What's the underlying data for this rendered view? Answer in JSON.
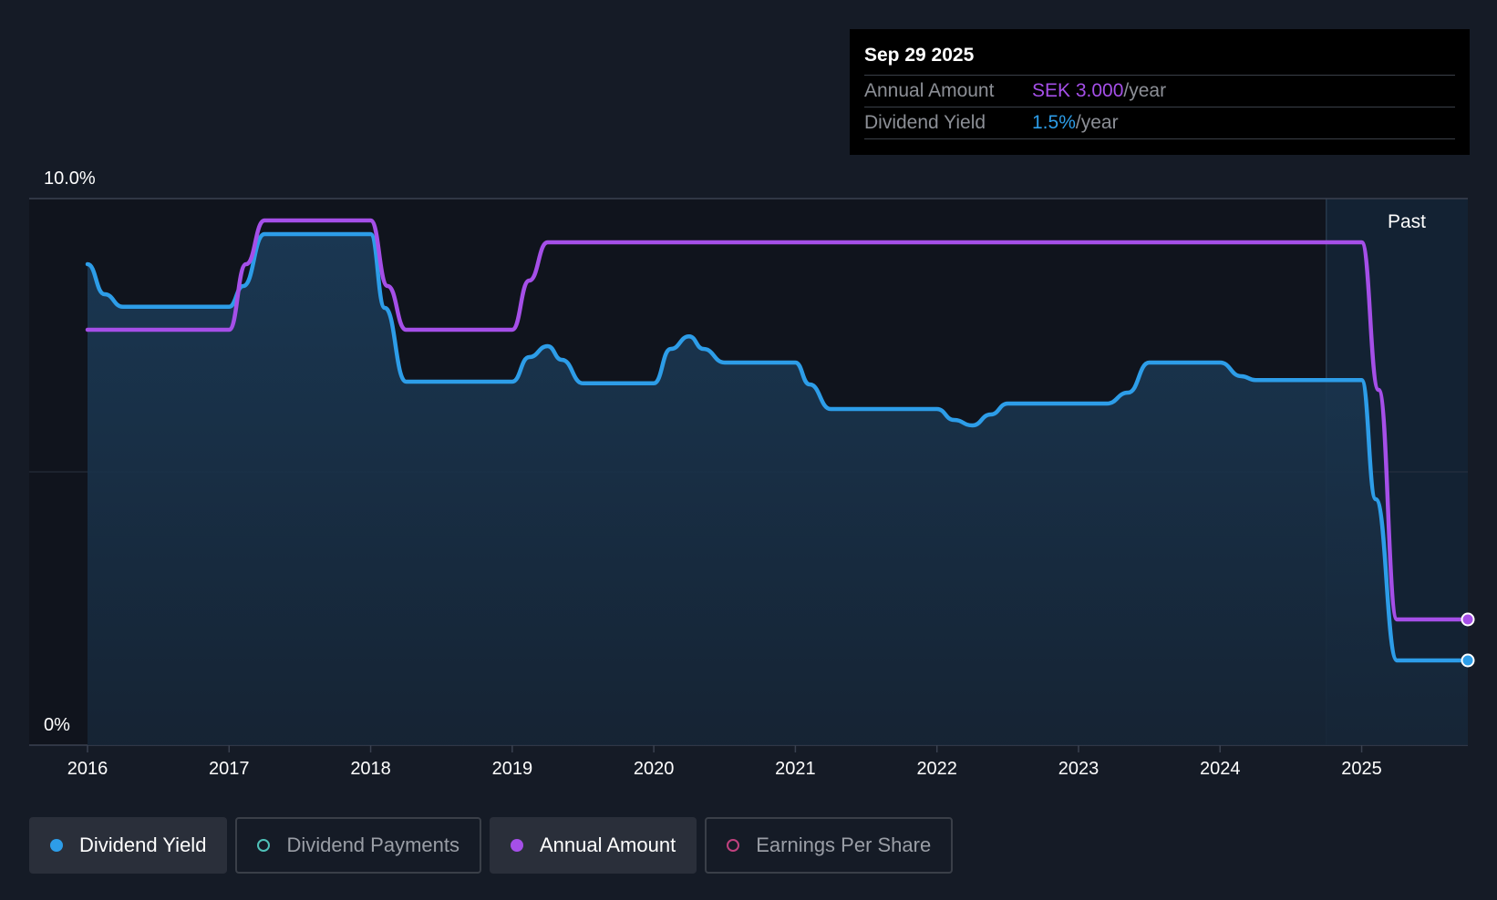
{
  "tooltip": {
    "date": "Sep 29 2025",
    "rows": [
      {
        "label": "Annual Amount",
        "value": "SEK 3.000",
        "unit": "/year",
        "color": "#a54fe8"
      },
      {
        "label": "Dividend Yield",
        "value": "1.5%",
        "unit": "/year",
        "color": "#2d9de8"
      }
    ]
  },
  "legend": [
    {
      "label": "Dividend Yield",
      "active": true,
      "color": "#2d9de8",
      "filled": true
    },
    {
      "label": "Dividend Payments",
      "active": false,
      "color": "#4fc1b8",
      "filled": false
    },
    {
      "label": "Annual Amount",
      "active": true,
      "color": "#a54fe8",
      "filled": true
    },
    {
      "label": "Earnings Per Share",
      "active": false,
      "color": "#c0417e",
      "filled": false
    }
  ],
  "chart_data": {
    "type": "line",
    "title": "",
    "xlabel": "",
    "ylabel": "",
    "ylim": [
      0,
      10
    ],
    "y_tick_labels": [
      "0%",
      "10.0%"
    ],
    "xlim": [
      2016,
      2025.75
    ],
    "x_tick_labels": [
      "2016",
      "2017",
      "2018",
      "2019",
      "2020",
      "2021",
      "2022",
      "2023",
      "2024",
      "2025"
    ],
    "x_ticks": [
      2016,
      2017,
      2018,
      2019,
      2020,
      2021,
      2022,
      2023,
      2024,
      2025
    ],
    "past_region": {
      "label": "Past",
      "start": 2024.75,
      "end": 2025.75
    },
    "series": [
      {
        "name": "Dividend Yield",
        "color": "#2d9de8",
        "area": true,
        "end_marker": true,
        "points": [
          [
            2016.0,
            8.8
          ],
          [
            2016.12,
            8.25
          ],
          [
            2016.25,
            8.02
          ],
          [
            2017.0,
            8.02
          ],
          [
            2017.1,
            8.4
          ],
          [
            2017.25,
            9.35
          ],
          [
            2018.0,
            9.35
          ],
          [
            2018.1,
            8.0
          ],
          [
            2018.25,
            6.65
          ],
          [
            2019.0,
            6.65
          ],
          [
            2019.12,
            7.1
          ],
          [
            2019.25,
            7.3
          ],
          [
            2019.35,
            7.05
          ],
          [
            2019.5,
            6.62
          ],
          [
            2020.0,
            6.62
          ],
          [
            2020.12,
            7.25
          ],
          [
            2020.25,
            7.48
          ],
          [
            2020.35,
            7.25
          ],
          [
            2020.5,
            7.0
          ],
          [
            2021.0,
            7.0
          ],
          [
            2021.1,
            6.6
          ],
          [
            2021.25,
            6.15
          ],
          [
            2022.0,
            6.15
          ],
          [
            2022.12,
            5.95
          ],
          [
            2022.25,
            5.85
          ],
          [
            2022.38,
            6.05
          ],
          [
            2022.5,
            6.25
          ],
          [
            2023.2,
            6.25
          ],
          [
            2023.35,
            6.45
          ],
          [
            2023.5,
            7.0
          ],
          [
            2024.0,
            7.0
          ],
          [
            2024.15,
            6.75
          ],
          [
            2024.25,
            6.68
          ],
          [
            2025.0,
            6.68
          ],
          [
            2025.1,
            4.5
          ],
          [
            2025.25,
            1.55
          ],
          [
            2025.75,
            1.55
          ]
        ]
      },
      {
        "name": "Annual Amount",
        "color": "#a54fe8",
        "area": false,
        "end_marker": true,
        "points": [
          [
            2016.0,
            7.6
          ],
          [
            2017.0,
            7.6
          ],
          [
            2017.12,
            8.8
          ],
          [
            2017.25,
            9.6
          ],
          [
            2018.0,
            9.6
          ],
          [
            2018.12,
            8.4
          ],
          [
            2018.25,
            7.6
          ],
          [
            2019.0,
            7.6
          ],
          [
            2019.12,
            8.5
          ],
          [
            2019.25,
            9.2
          ],
          [
            2025.0,
            9.2
          ],
          [
            2025.12,
            6.5
          ],
          [
            2025.25,
            2.3
          ],
          [
            2025.75,
            2.3
          ]
        ]
      }
    ]
  }
}
